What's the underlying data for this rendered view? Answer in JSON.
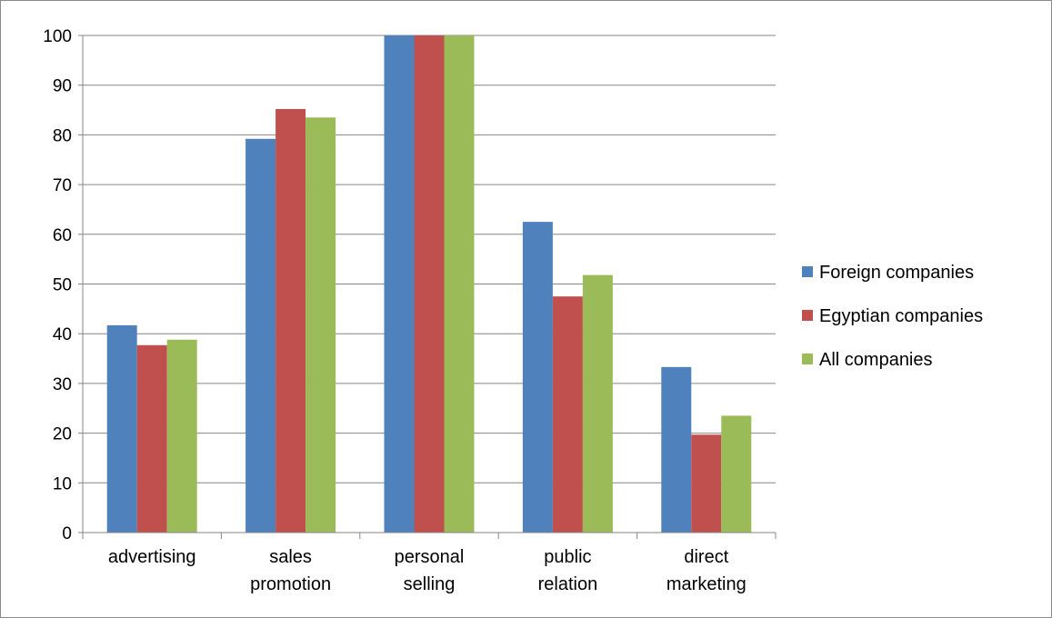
{
  "chart_data": {
    "type": "bar",
    "title": "",
    "xlabel": "",
    "ylabel": "",
    "ylim": [
      0,
      100
    ],
    "yticks": [
      0,
      10,
      20,
      30,
      40,
      50,
      60,
      70,
      80,
      90,
      100
    ],
    "categories": [
      [
        "advertising"
      ],
      [
        "sales",
        "promotion"
      ],
      [
        "personal",
        "selling"
      ],
      [
        "public",
        "relation"
      ],
      [
        "direct",
        "marketing"
      ]
    ],
    "series": [
      {
        "name": "Foreign companies",
        "color": "#4f81bd",
        "values": [
          41.7,
          79.2,
          100,
          62.5,
          33.3
        ]
      },
      {
        "name": "Egyptian companies",
        "color": "#c0504d",
        "values": [
          37.7,
          85.2,
          100,
          47.5,
          19.7
        ]
      },
      {
        "name": "All companies",
        "color": "#9bbb59",
        "values": [
          38.8,
          83.5,
          100,
          51.8,
          23.5
        ]
      }
    ],
    "grid": true,
    "legend_position": "right"
  }
}
